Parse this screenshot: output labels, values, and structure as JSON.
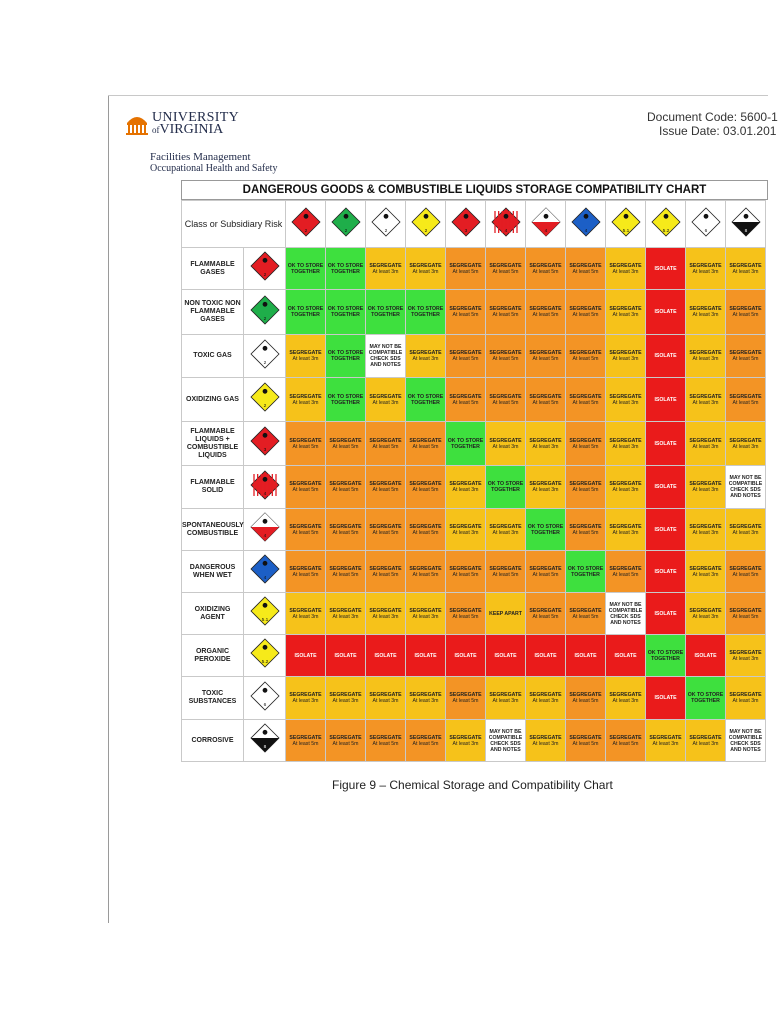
{
  "header": {
    "logo_line1": "UNIVERSITY",
    "logo_prefix_of": "of",
    "logo_line2": "VIRGINIA",
    "dept_line1": "Facilities Management",
    "dept_line2": "Occupational Health and Safety",
    "doc_code": "Document Code: 5600-1",
    "issue_date": "Issue Date: 03.01.201"
  },
  "chart": {
    "title": "DANGEROUS GOODS & COMBUSTIBLE LIQUIDS STORAGE COMPATIBILITY CHART",
    "corner_label": "Class or Subsidiary Risk",
    "columns": [
      {
        "icon": "flammable-gas-diamond",
        "color": "#e31d23",
        "num": "2"
      },
      {
        "icon": "non-flammable-gas-diamond",
        "color": "#1fae4a",
        "num": "2"
      },
      {
        "icon": "toxic-gas-diamond",
        "color": "#ffffff",
        "num": "2"
      },
      {
        "icon": "oxidizing-gas-diamond",
        "color": "#f6ea1a",
        "num": "2"
      },
      {
        "icon": "flammable-liquid-diamond",
        "color": "#e31d23",
        "num": "3"
      },
      {
        "icon": "flammable-solid-diamond",
        "color": "#e31d23",
        "num": "4"
      },
      {
        "icon": "spontaneously-combustible-diamond",
        "color": "#e31d23",
        "num": "4"
      },
      {
        "icon": "dangerous-when-wet-diamond",
        "color": "#1c5fc6",
        "num": "4"
      },
      {
        "icon": "oxidizing-agent-diamond",
        "color": "#f6ea1a",
        "num": "5.1"
      },
      {
        "icon": "organic-peroxide-diamond",
        "color": "#f6ea1a",
        "num": "5.2"
      },
      {
        "icon": "toxic-diamond",
        "color": "#ffffff",
        "num": "6"
      },
      {
        "icon": "corrosive-diamond",
        "color": "#ffffff",
        "num": "8"
      }
    ],
    "rows": [
      {
        "label": "FLAMMABLE GASES",
        "icon": "flammable-gas-diamond",
        "color": "#e31d23",
        "num": "2"
      },
      {
        "label": "NON TOXIC NON FLAMMABLE GASES",
        "icon": "non-flammable-gas-diamond",
        "color": "#1fae4a",
        "num": "2"
      },
      {
        "label": "TOXIC GAS",
        "icon": "toxic-gas-diamond",
        "color": "#ffffff",
        "num": "2"
      },
      {
        "label": "OXIDIZING GAS",
        "icon": "oxidizing-gas-diamond",
        "color": "#f6ea1a",
        "num": "2"
      },
      {
        "label": "FLAMMABLE LIQUIDS + COMBUSTIBLE LIQUIDS",
        "icon": "flammable-liquid-diamond",
        "color": "#e31d23",
        "num": "3"
      },
      {
        "label": "FLAMMABLE SOLID",
        "icon": "flammable-solid-diamond",
        "color": "#e31d23",
        "num": "4"
      },
      {
        "label": "SPONTANEOUSLY COMBUSTIBLE",
        "icon": "spontaneously-combustible-diamond",
        "color": "#e31d23",
        "num": "4"
      },
      {
        "label": "DANGEROUS WHEN WET",
        "icon": "dangerous-when-wet-diamond",
        "color": "#1c5fc6",
        "num": "4"
      },
      {
        "label": "OXIDIZING AGENT",
        "icon": "oxidizing-agent-diamond",
        "color": "#f6ea1a",
        "num": "5.1"
      },
      {
        "label": "ORGANIC PEROXIDE",
        "icon": "organic-peroxide-diamond",
        "color": "#f6ea1a",
        "num": "5.2"
      },
      {
        "label": "TOXIC SUBSTANCES",
        "icon": "toxic-diamond",
        "color": "#ffffff",
        "num": "6"
      },
      {
        "label": "CORROSIVE",
        "icon": "corrosive-diamond",
        "color": "#ffffff",
        "num": "8"
      }
    ],
    "legend_texts": {
      "ok": "OK TO STORE TOGETHER",
      "seg3_main": "SEGREGATE",
      "seg3_sub": "At least 3m",
      "seg5_main": "SEGREGATE",
      "seg5_sub": "At least 5m",
      "isolate": "ISOLATE",
      "keep": "KEEP APART",
      "maynot": "MAY NOT BE COMPATIBLE CHECK SDS AND NOTES"
    },
    "colors": {
      "ok": "#3ee03e",
      "seg3": "#f6c21a",
      "seg5": "#f39425",
      "isolate": "#ea1b1b",
      "keep": "#f6c21a",
      "maynot": "#ffffff"
    },
    "matrix": [
      [
        "ok",
        "ok",
        "seg3",
        "seg3",
        "seg5",
        "seg5",
        "seg5",
        "seg5",
        "seg3",
        "isolate",
        "seg3",
        "seg3"
      ],
      [
        "ok",
        "ok",
        "ok",
        "ok",
        "seg5",
        "seg5",
        "seg5",
        "seg5",
        "seg3",
        "isolate",
        "seg3",
        "seg5"
      ],
      [
        "seg3",
        "ok",
        "maynot",
        "seg3",
        "seg5",
        "seg5",
        "seg5",
        "seg5",
        "seg3",
        "isolate",
        "seg3",
        "seg5"
      ],
      [
        "seg3",
        "ok",
        "seg3",
        "ok",
        "seg5",
        "seg5",
        "seg5",
        "seg5",
        "seg3",
        "isolate",
        "seg3",
        "seg5"
      ],
      [
        "seg5",
        "seg5",
        "seg5",
        "seg5",
        "ok",
        "seg3",
        "seg3",
        "seg5",
        "seg3",
        "isolate",
        "seg3",
        "seg3"
      ],
      [
        "seg5",
        "seg5",
        "seg5",
        "seg5",
        "seg3",
        "ok",
        "seg3",
        "seg5",
        "seg3",
        "isolate",
        "seg3",
        "maynot"
      ],
      [
        "seg5",
        "seg5",
        "seg5",
        "seg5",
        "seg3",
        "seg3",
        "ok",
        "seg5",
        "seg3",
        "isolate",
        "seg3",
        "seg3"
      ],
      [
        "seg5",
        "seg5",
        "seg5",
        "seg5",
        "seg5",
        "seg5",
        "seg5",
        "ok",
        "seg5",
        "isolate",
        "seg3",
        "seg5"
      ],
      [
        "seg3",
        "seg3",
        "seg3",
        "seg3",
        "seg5",
        "keep",
        "seg5",
        "seg5",
        "maynot",
        "isolate",
        "seg3",
        "seg5"
      ],
      [
        "isolate",
        "isolate",
        "isolate",
        "isolate",
        "isolate",
        "isolate",
        "isolate",
        "isolate",
        "isolate",
        "ok",
        "isolate",
        "seg3"
      ],
      [
        "seg3",
        "seg3",
        "seg3",
        "seg3",
        "seg5",
        "seg3",
        "seg3",
        "seg5",
        "seg3",
        "isolate",
        "ok",
        "seg3"
      ],
      [
        "seg5",
        "seg5",
        "seg5",
        "seg5",
        "seg3",
        "maynot",
        "seg3",
        "seg5",
        "seg5",
        "seg3",
        "seg3",
        "maynot"
      ]
    ]
  },
  "caption": "Figure 9 – Chemical Storage and Compatibility Chart"
}
